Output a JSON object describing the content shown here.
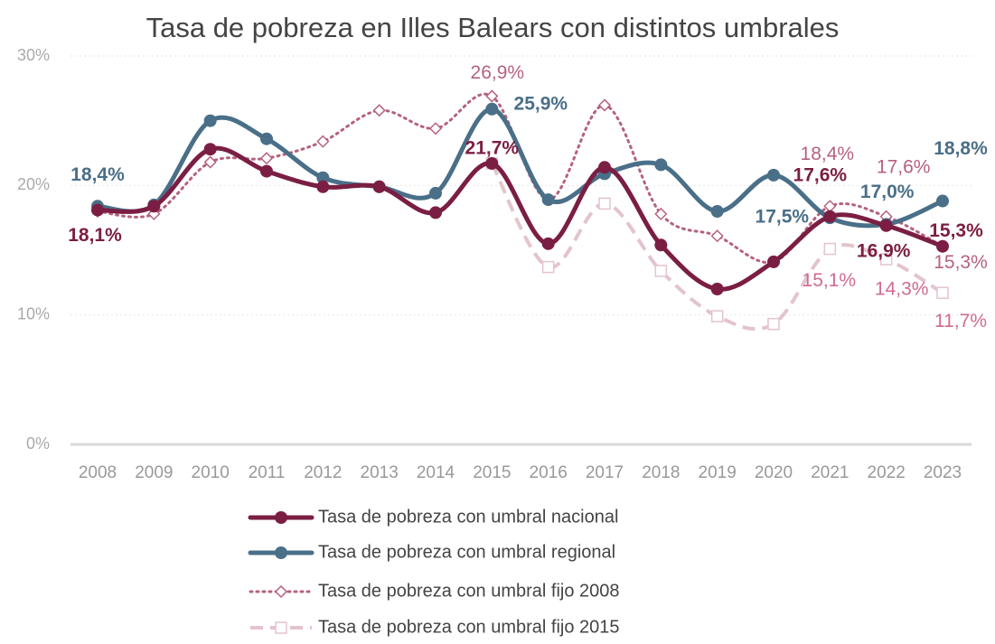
{
  "chart_data": {
    "type": "line",
    "title": "Tasa de pobreza en Illes Balears con distintos umbrales",
    "categories": [
      "2008",
      "2009",
      "2010",
      "2011",
      "2012",
      "2013",
      "2014",
      "2015",
      "2016",
      "2017",
      "2018",
      "2019",
      "2020",
      "2021",
      "2022",
      "2023"
    ],
    "ylim": [
      0,
      30
    ],
    "yticks": [
      {
        "value": 0,
        "label": "0%"
      },
      {
        "value": 10,
        "label": "10%"
      },
      {
        "value": 20,
        "label": "20%"
      },
      {
        "value": 30,
        "label": "30%"
      }
    ],
    "grid": true,
    "legend": "bottom",
    "series": [
      {
        "name": "Tasa de pobreza con umbral nacional",
        "color": "#7b1e43",
        "style": "solid",
        "marker": "circle",
        "values": [
          18.1,
          18.4,
          22.8,
          21.1,
          19.9,
          19.9,
          17.9,
          21.7,
          15.5,
          21.4,
          15.4,
          12.0,
          14.1,
          17.6,
          16.9,
          15.3
        ],
        "value_labels": [
          "18,1%",
          null,
          null,
          null,
          null,
          null,
          null,
          "21,7%",
          null,
          null,
          null,
          null,
          null,
          "17,6%",
          "16,9%",
          "15,3%"
        ]
      },
      {
        "name": "Tasa de pobreza con umbral regional",
        "color": "#4a6f88",
        "style": "solid",
        "marker": "circle",
        "values": [
          18.4,
          18.5,
          25.0,
          23.6,
          20.6,
          19.9,
          19.4,
          25.9,
          18.9,
          20.9,
          21.6,
          18.0,
          20.8,
          17.5,
          17.0,
          18.8
        ],
        "value_labels": [
          "18,4%",
          null,
          null,
          null,
          null,
          null,
          null,
          "25,9%",
          null,
          null,
          null,
          null,
          null,
          "17,5%",
          "17,0%",
          "18,8%"
        ]
      },
      {
        "name": "Tasa de pobreza con umbral fijo 2008",
        "color": "#b5627f",
        "style": "dotted",
        "marker": "diamond",
        "values": [
          18.0,
          17.8,
          21.8,
          22.1,
          23.4,
          25.8,
          24.4,
          26.9,
          18.9,
          26.2,
          17.8,
          16.1,
          14.1,
          18.4,
          17.6,
          15.3
        ],
        "value_labels": [
          null,
          null,
          null,
          null,
          null,
          null,
          null,
          "26,9%",
          null,
          null,
          null,
          null,
          null,
          "18,4%",
          "17,6%",
          "15,3%"
        ]
      },
      {
        "name": "Tasa de pobreza con umbral fijo 2015",
        "color": "#e3c4cd",
        "style": "dashed",
        "marker": "square",
        "values": [
          null,
          null,
          null,
          null,
          null,
          null,
          null,
          21.7,
          13.7,
          18.6,
          13.4,
          9.9,
          9.3,
          15.1,
          14.3,
          11.7
        ],
        "value_labels": [
          null,
          null,
          null,
          null,
          null,
          null,
          null,
          null,
          null,
          null,
          null,
          null,
          null,
          "15,1%",
          "14,3%",
          "11,7%"
        ]
      }
    ]
  }
}
